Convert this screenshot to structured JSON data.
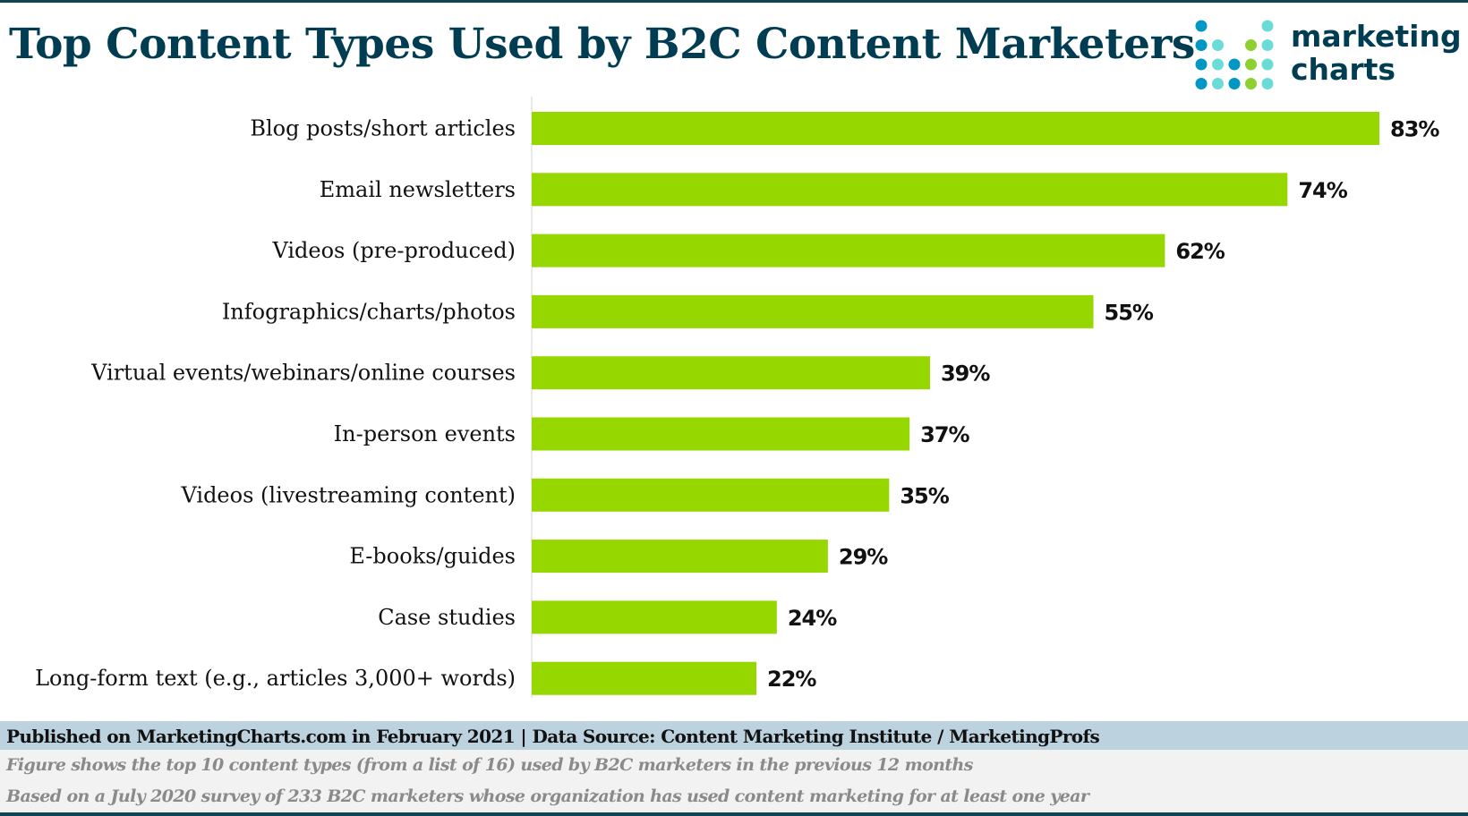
{
  "header": {
    "title": "Top Content Types Used by B2C Content Marketers"
  },
  "logo": {
    "line1": "marketing",
    "line2": "charts",
    "colors": [
      "#0097c4",
      "#6bdbd8",
      "#8ed02f"
    ]
  },
  "chart_data": {
    "type": "bar",
    "orientation": "horizontal",
    "title": "Top Content Types Used by B2C Content Marketers",
    "categories": [
      "Blog posts/short articles",
      "Email newsletters",
      "Videos (pre-produced)",
      "Infographics/charts/photos",
      "Virtual events/webinars/online courses",
      "In-person events",
      "Videos (livestreaming content)",
      "E-books/guides",
      "Case studies",
      "Long-form text (e.g., articles 3,000+ words)"
    ],
    "values": [
      83,
      74,
      62,
      55,
      39,
      37,
      35,
      29,
      24,
      22
    ],
    "data_labels": [
      "83%",
      "74%",
      "62%",
      "55%",
      "39%",
      "37%",
      "35%",
      "29%",
      "24%",
      "22%"
    ],
    "unit": "%",
    "xlim": [
      0,
      83
    ],
    "grid": false,
    "bar_color": "#97d700"
  },
  "footer": {
    "source": "Published on MarketingCharts.com in February 2021 | Data Source: Content Marketing Institute / MarketingProfs",
    "note1": "Figure shows the top 10 content types (from a list of 16) used by B2C marketers in the previous 12 months",
    "note2": "Based on a July 2020 survey of 233 B2C marketers whose organization has used content marketing for at least one year"
  }
}
